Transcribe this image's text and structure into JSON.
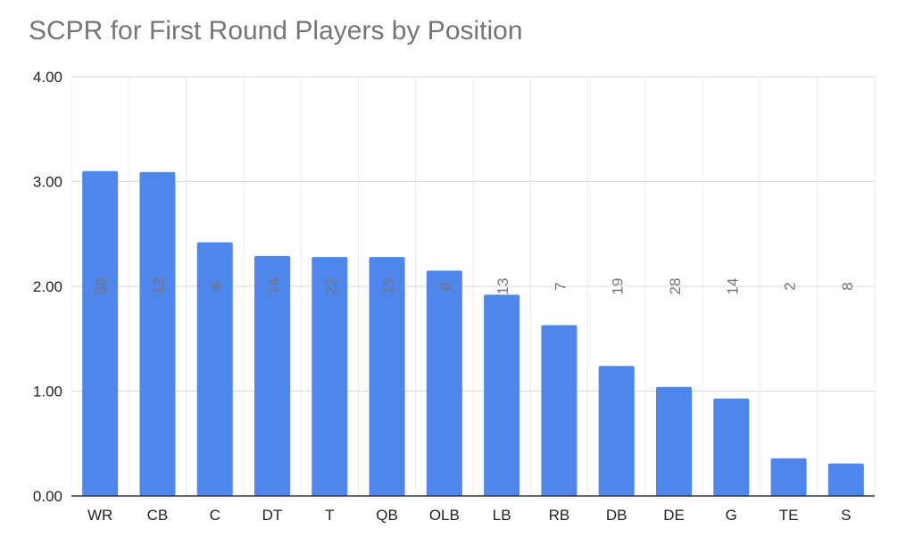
{
  "chart_data": {
    "type": "bar",
    "title": "SCPR for First Round Players by Position",
    "xlabel": "",
    "ylabel": "",
    "categories": [
      "WR",
      "CB",
      "C",
      "DT",
      "T",
      "QB",
      "OLB",
      "LB",
      "RB",
      "DB",
      "DE",
      "G",
      "TE",
      "S"
    ],
    "values": [
      3.1,
      3.09,
      2.42,
      2.29,
      2.28,
      2.28,
      2.15,
      1.92,
      1.63,
      1.24,
      1.04,
      0.93,
      0.36,
      0.31
    ],
    "data_labels": [
      "30",
      "12",
      "4",
      "14",
      "22",
      "15",
      "8",
      "13",
      "7",
      "19",
      "28",
      "14",
      "2",
      "8"
    ],
    "ylim": [
      0,
      4
    ],
    "yticks": [
      "0.00",
      "1.00",
      "2.00",
      "3.00",
      "4.00"
    ],
    "grid": true,
    "colors": {
      "bar": "#4f86ec",
      "grid": "#d9d9d9",
      "axis": "#333333"
    }
  }
}
